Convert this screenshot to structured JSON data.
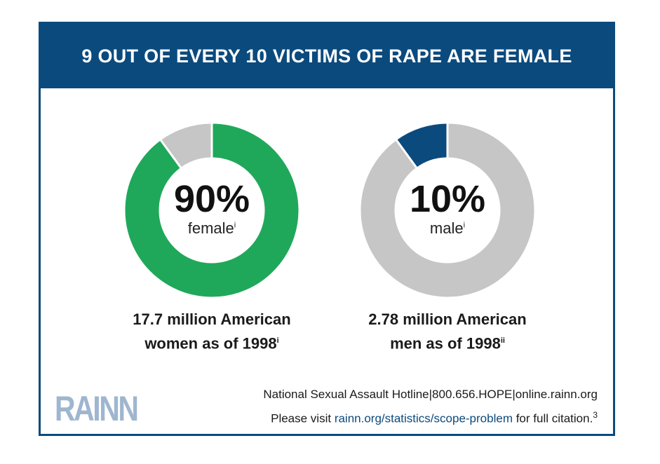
{
  "title": "9 OUT OF EVERY 10 VICTIMS OF RAPE ARE FEMALE",
  "colors": {
    "brand_blue": "#0b4a7d",
    "female_green": "#1fa85a",
    "male_blue": "#0b4a7d",
    "remainder_gray": "#c6c6c6"
  },
  "chart_data": [
    {
      "type": "pie",
      "style": "donut",
      "categories": [
        "female",
        "male"
      ],
      "values": [
        90,
        10
      ],
      "highlight": "female",
      "center_value": "90%",
      "center_label": "female",
      "center_label_note": "i",
      "caption_line1": "17.7 million American",
      "caption_line2": "women as of 1998",
      "caption_note": "i"
    },
    {
      "type": "pie",
      "style": "donut",
      "categories": [
        "male",
        "female"
      ],
      "values": [
        10,
        90
      ],
      "highlight": "male",
      "center_value": "10%",
      "center_label": "male",
      "center_label_note": "i",
      "caption_line1": "2.78 million American",
      "caption_line2": "men as of 1998",
      "caption_note": "ii"
    }
  ],
  "footer": {
    "logo": "RAINN",
    "hotline": "National Sexual Assault Hotline|800.656.HOPE|online.rainn.org",
    "visit_prefix": "Please visit ",
    "visit_link": "rainn.org/statistics/scope-problem",
    "visit_suffix": " for full citation.",
    "citation_mark": "3"
  }
}
